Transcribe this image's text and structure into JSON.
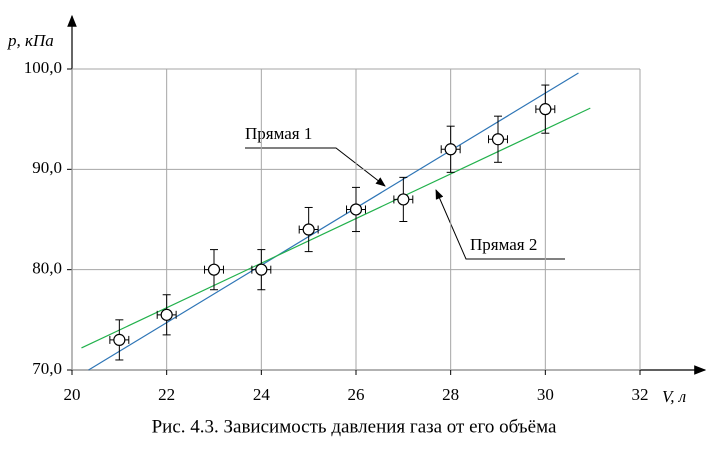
{
  "chart_data": {
    "type": "scatter",
    "caption": "Рис. 4.3. Зависимость давления газа от его объёма",
    "xlabel": "V, л",
    "ylabel": "p, кПа",
    "x": [
      21,
      22,
      23,
      24,
      25,
      26,
      27,
      28,
      29,
      30
    ],
    "values": [
      73,
      75.5,
      80,
      80,
      84,
      86,
      87,
      92,
      93,
      96
    ],
    "xerr": [
      0.2,
      0.2,
      0.2,
      0.2,
      0.2,
      0.2,
      0.2,
      0.2,
      0.2,
      0.2
    ],
    "yerr": [
      2,
      2,
      2,
      2,
      2.2,
      2.2,
      2.2,
      2.3,
      2.3,
      2.4
    ],
    "point_color": "#000000",
    "series": [
      {
        "name": "Прямая 1",
        "color": "#2e75b6",
        "x": [
          20.35,
          30.7
        ],
        "values": [
          70,
          99.6
        ]
      },
      {
        "name": "Прямая 2",
        "color": "#22b14c",
        "x": [
          20.2,
          30.95
        ],
        "values": [
          72.2,
          96.1
        ]
      }
    ],
    "xlim": [
      20,
      32
    ],
    "ylim": [
      70,
      100
    ],
    "xticks": [
      20,
      22,
      24,
      26,
      28,
      30,
      32
    ],
    "yticks": [
      {
        "value": 70,
        "label": "70,0"
      },
      {
        "value": 80,
        "label": "80,0"
      },
      {
        "value": 90,
        "label": "90,0"
      },
      {
        "value": 100,
        "label": "100,0"
      }
    ],
    "grid": true
  }
}
